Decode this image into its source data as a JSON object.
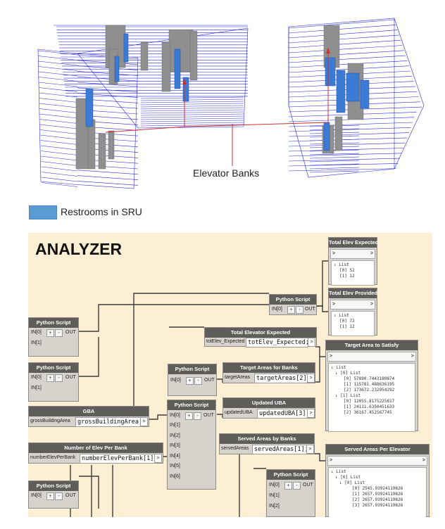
{
  "annotation": {
    "elevator_label": "Elevator Banks",
    "legend_label": "Restrooms in SRU"
  },
  "colors": {
    "wireframe": "#2b2be0",
    "restroom": "#3a7bd5",
    "core": "#8f8f8f",
    "canvas": "#fcefd4",
    "node_header": "#5e5d5a",
    "node_body": "#d6d2cc"
  },
  "analyzer": {
    "title": "ANALYZER",
    "python_script_title": "Python Script",
    "port_in0": "IN[0]",
    "port_in1": "IN[1]",
    "port_in2": "IN[2]",
    "port_in3": "IN[3]",
    "port_in4": "IN[4]",
    "port_in5": "IN[5]",
    "port_in6": "IN[6]",
    "port_out": "OUT",
    "plus": "+",
    "minus": "-",
    "out_arrow": ">",
    "total_elev_expected_node": {
      "title": "Total Elevator Expected",
      "port": "totElev_Expected",
      "code": "totElev_Expected;"
    },
    "target_areas_node": {
      "title": "Target Areas for Banks",
      "port": "targetAreas",
      "code": "targetAreas[2];"
    },
    "updated_uba_node": {
      "title": "Updated UBA",
      "port": "updatedUBA",
      "code": "updatedUBA[3];"
    },
    "served_areas_node": {
      "title": "Served Areas by Banks",
      "port": "servedAreas",
      "code": "servedAreas[1];"
    },
    "gba_node": {
      "title": "GBA",
      "port": "grossBuildingArea",
      "code": "grossBuildingArea;"
    },
    "num_elev_node": {
      "title": "Number of Elev Per Bank",
      "port": "numberElevPerBank",
      "code": "numberElevPerBank[1];"
    },
    "watch_total_expected": {
      "title": "Total Elev Expected",
      "input": ">",
      "output": ">",
      "lines": [
        "↓ List",
        "[0] 52",
        "[1] 12"
      ]
    },
    "watch_total_provided": {
      "title": "Total Elev Provided",
      "input": ">",
      "output": ">",
      "lines": [
        "↓ List",
        "[0] 72",
        "[1] 12"
      ]
    },
    "watch_target_area": {
      "title": "Target Area to Satisfy",
      "input": ">",
      "output": ">",
      "lines": [
        "↓ List",
        "↓ [0] List",
        "[0] 57890.7443180874",
        "[1] 115781.488636195",
        "[2] 173672.232954292",
        "↓ [1] List",
        "[0] 12055.8175225817",
        "[1] 24111.6350451633",
        "[2] 36167.452567745"
      ]
    },
    "watch_served_areas": {
      "title": "Served Areas Per Elevator",
      "input": ">",
      "output": ">",
      "lines": [
        "↓ List",
        "↓ [0] List",
        "↓ [0] List",
        "[0] 2545.93924119826",
        "[1] 2657.93924119826",
        "[2] 2657.93924119826",
        "[3] 2657.93924119826"
      ]
    }
  }
}
